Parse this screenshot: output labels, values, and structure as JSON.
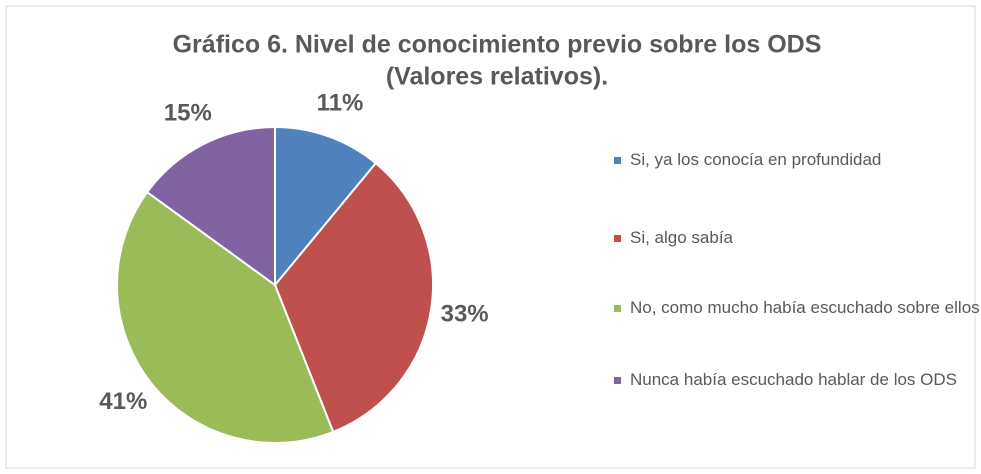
{
  "chart_data": {
    "type": "pie",
    "title": [
      "Gráfico 6. Nivel de conocimiento previo sobre los ODS",
      "(Valores relativos)."
    ],
    "categories": [
      "Si, ya los conocía en profundidad",
      "Si, algo sabía",
      "No, como mucho había escuchado sobre ellos",
      "Nunca había escuchado hablar de los ODS"
    ],
    "values": [
      11,
      33,
      41,
      15
    ],
    "value_labels": [
      "11%",
      "33%",
      "41%",
      "15%"
    ],
    "colors": [
      "#4f81bd",
      "#c0504d",
      "#9bbb59",
      "#8064a2"
    ],
    "legend": "right"
  }
}
